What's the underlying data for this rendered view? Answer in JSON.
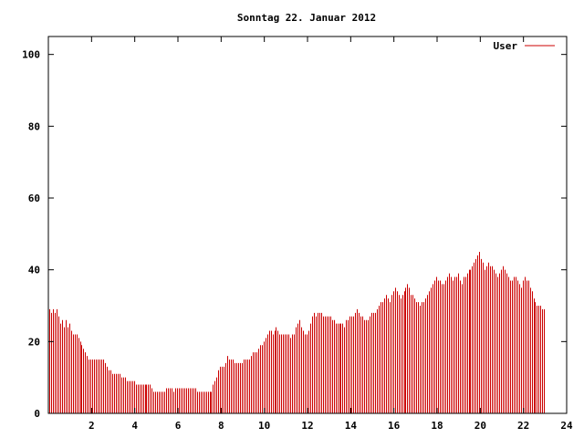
{
  "chart_data": {
    "type": "bar",
    "title": "Sonntag 22. Januar 2012",
    "xlabel": "",
    "ylabel": "",
    "xlim": [
      0,
      24
    ],
    "ylim": [
      0,
      105
    ],
    "x_ticks": [
      2,
      4,
      6,
      8,
      10,
      12,
      14,
      16,
      18,
      20,
      22,
      24
    ],
    "y_ticks": [
      0,
      20,
      40,
      60,
      80,
      100
    ],
    "grid": false,
    "legend": "top-right",
    "colors": {
      "series": "#cc0000",
      "axis": "#000000",
      "background": "#ffffff"
    },
    "series": [
      {
        "name": "User",
        "points_per_hour": 12,
        "values": [
          29,
          28,
          29,
          28,
          29,
          27,
          25,
          26,
          24,
          26,
          24,
          25,
          23,
          22,
          22,
          22,
          21,
          20,
          19,
          18,
          17,
          16,
          15,
          15,
          15,
          15,
          15,
          15,
          15,
          15,
          15,
          14,
          13,
          12,
          12,
          11,
          11,
          11,
          11,
          11,
          10,
          10,
          10,
          9,
          9,
          9,
          9,
          9,
          8,
          8,
          8,
          8,
          8,
          8,
          8,
          8,
          8,
          7,
          6,
          6,
          6,
          6,
          6,
          6,
          6,
          7,
          7,
          7,
          7,
          6,
          7,
          7,
          7,
          7,
          7,
          7,
          7,
          7,
          7,
          7,
          7,
          7,
          6,
          6,
          6,
          6,
          6,
          6,
          6,
          6,
          6,
          8,
          9,
          10,
          12,
          13,
          13,
          13,
          14,
          16,
          15,
          15,
          15,
          14,
          14,
          14,
          14,
          14,
          15,
          15,
          15,
          15,
          16,
          17,
          17,
          17,
          18,
          19,
          19,
          20,
          21,
          22,
          23,
          23,
          22,
          23,
          24,
          23,
          22,
          22,
          22,
          22,
          22,
          22,
          21,
          22,
          22,
          24,
          25,
          26,
          24,
          23,
          22,
          22,
          23,
          25,
          27,
          28,
          27,
          28,
          28,
          28,
          27,
          27,
          27,
          27,
          27,
          26,
          26,
          25,
          25,
          25,
          25,
          25,
          24,
          26,
          26,
          27,
          27,
          27,
          28,
          29,
          28,
          27,
          27,
          26,
          26,
          26,
          27,
          28,
          28,
          28,
          29,
          30,
          31,
          31,
          32,
          33,
          32,
          31,
          33,
          34,
          35,
          34,
          33,
          32,
          33,
          34,
          35,
          36,
          35,
          33,
          33,
          32,
          31,
          31,
          30,
          31,
          31,
          32,
          33,
          34,
          35,
          36,
          37,
          38,
          37,
          37,
          36,
          36,
          37,
          38,
          39,
          38,
          37,
          38,
          38,
          39,
          37,
          36,
          38,
          38,
          39,
          40,
          40,
          41,
          42,
          43,
          44,
          45,
          43,
          42,
          40,
          41,
          42,
          41,
          41,
          40,
          39,
          38,
          39,
          40,
          41,
          40,
          39,
          38,
          37,
          37,
          38,
          38,
          37,
          36,
          35,
          37,
          38,
          37,
          37,
          35,
          34,
          32,
          31,
          30,
          30,
          30,
          29,
          29
        ]
      }
    ]
  }
}
